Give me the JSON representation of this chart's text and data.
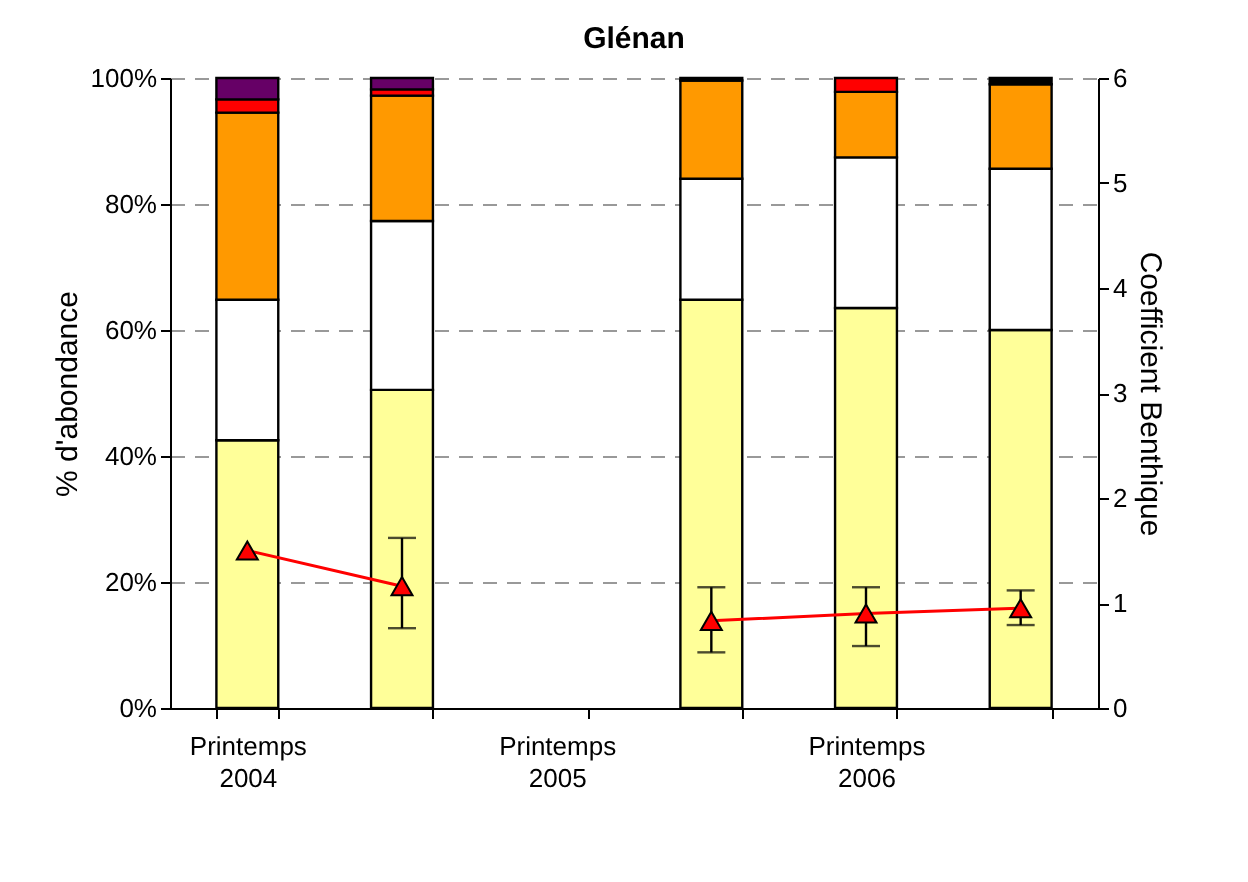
{
  "chart_data": {
    "type": "bar",
    "title": "Glénan",
    "categories": [
      "Printemps 2004",
      null,
      "Printemps 2005",
      null,
      "Printemps 2006",
      null
    ],
    "stacked": true,
    "ylabel": "% d'abondance",
    "y2label": "Coefficient Benthique",
    "ylim": [
      0,
      100
    ],
    "yticks": [
      {
        "value": 0,
        "label": "0%"
      },
      {
        "value": 20,
        "label": "20%"
      },
      {
        "value": 40,
        "label": "40%"
      },
      {
        "value": 60,
        "label": "60%"
      },
      {
        "value": 80,
        "label": "80%"
      },
      {
        "value": 100,
        "label": "100%"
      }
    ],
    "y2lim": [
      0,
      6
    ],
    "y2ticks": [
      0,
      1,
      2,
      3,
      4,
      5,
      6
    ],
    "grid": "y",
    "series": [
      {
        "color": "#ffff99",
        "values": [
          42.5,
          50.5,
          null,
          64.8,
          63.5,
          60.0
        ]
      },
      {
        "color": "#ffffff",
        "values": [
          22.3,
          26.8,
          null,
          19.2,
          23.9,
          25.6
        ]
      },
      {
        "color": "#ff9900",
        "values": [
          29.7,
          19.9,
          null,
          15.6,
          10.4,
          13.4
        ]
      },
      {
        "color": "#ff0000",
        "values": [
          2.1,
          1.0,
          null,
          null,
          2.2,
          null
        ]
      },
      {
        "color": "#660066",
        "values": [
          3.4,
          1.8,
          null,
          null,
          null,
          null
        ]
      },
      {
        "color": "#000000",
        "values": [
          null,
          null,
          null,
          0.4,
          null,
          1.0
        ]
      },
      {
        "type": "line",
        "axis": "y2",
        "color": "#ff0000",
        "marker": "triangle",
        "line_style": "solid",
        "values": [
          1.5,
          1.16,
          null,
          0.83,
          0.9,
          0.95
        ],
        "errors": [
          null,
          [
            0.76,
            1.62
          ],
          null,
          [
            0.53,
            1.15
          ],
          [
            0.59,
            1.15
          ],
          [
            0.79,
            1.12
          ]
        ]
      }
    ]
  }
}
